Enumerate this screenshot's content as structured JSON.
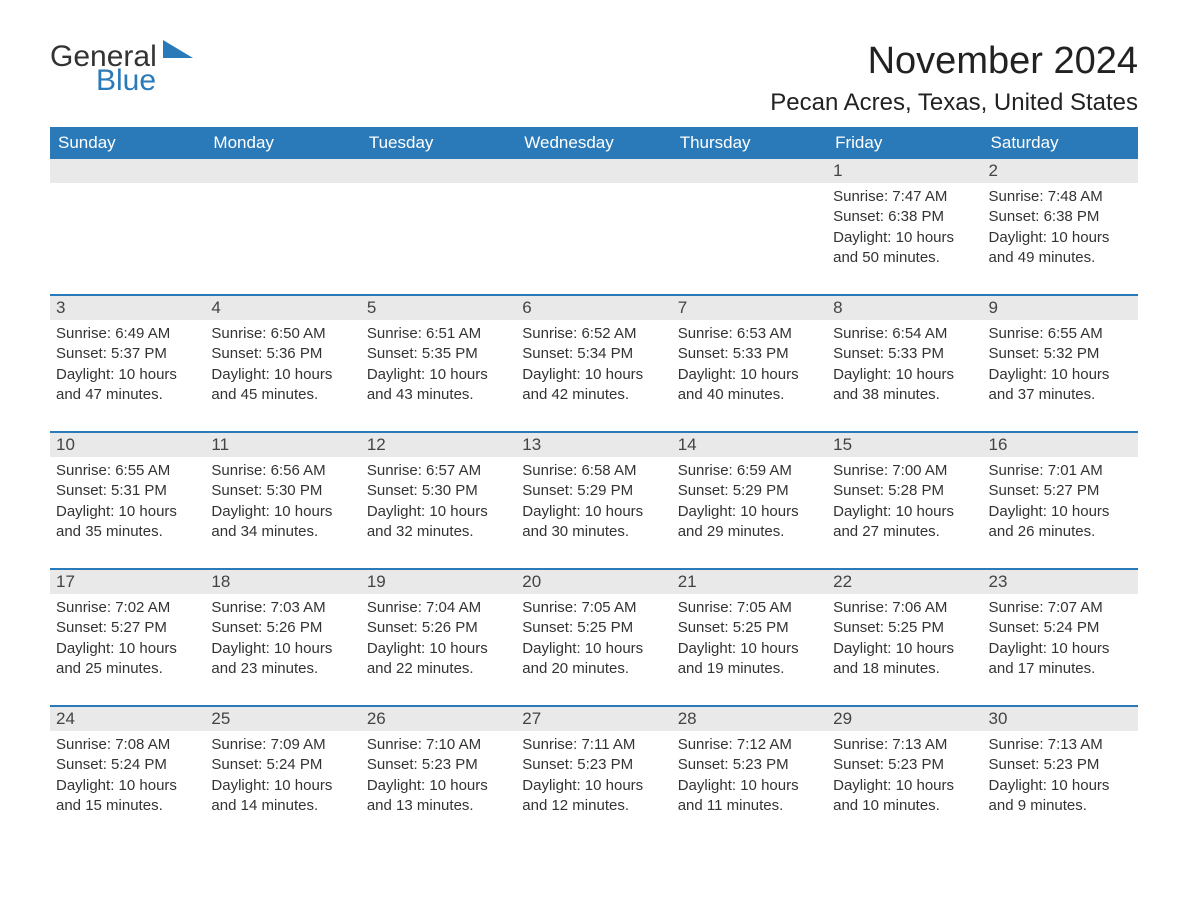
{
  "logo": {
    "part1": "General",
    "part2": "Blue",
    "color_dark": "#333333",
    "color_blue": "#2a7ab9"
  },
  "title": "November 2024",
  "location": "Pecan Acres, Texas, United States",
  "header_bg": "#2a7ab9",
  "header_text_color": "#ffffff",
  "daynum_bg": "#e9e9e9",
  "border_color": "#2a7ab9",
  "days_of_week": [
    "Sunday",
    "Monday",
    "Tuesday",
    "Wednesday",
    "Thursday",
    "Friday",
    "Saturday"
  ],
  "weeks": [
    [
      null,
      null,
      null,
      null,
      null,
      {
        "n": "1",
        "sunrise": "Sunrise: 7:47 AM",
        "sunset": "Sunset: 6:38 PM",
        "dl1": "Daylight: 10 hours",
        "dl2": "and 50 minutes."
      },
      {
        "n": "2",
        "sunrise": "Sunrise: 7:48 AM",
        "sunset": "Sunset: 6:38 PM",
        "dl1": "Daylight: 10 hours",
        "dl2": "and 49 minutes."
      }
    ],
    [
      {
        "n": "3",
        "sunrise": "Sunrise: 6:49 AM",
        "sunset": "Sunset: 5:37 PM",
        "dl1": "Daylight: 10 hours",
        "dl2": "and 47 minutes."
      },
      {
        "n": "4",
        "sunrise": "Sunrise: 6:50 AM",
        "sunset": "Sunset: 5:36 PM",
        "dl1": "Daylight: 10 hours",
        "dl2": "and 45 minutes."
      },
      {
        "n": "5",
        "sunrise": "Sunrise: 6:51 AM",
        "sunset": "Sunset: 5:35 PM",
        "dl1": "Daylight: 10 hours",
        "dl2": "and 43 minutes."
      },
      {
        "n": "6",
        "sunrise": "Sunrise: 6:52 AM",
        "sunset": "Sunset: 5:34 PM",
        "dl1": "Daylight: 10 hours",
        "dl2": "and 42 minutes."
      },
      {
        "n": "7",
        "sunrise": "Sunrise: 6:53 AM",
        "sunset": "Sunset: 5:33 PM",
        "dl1": "Daylight: 10 hours",
        "dl2": "and 40 minutes."
      },
      {
        "n": "8",
        "sunrise": "Sunrise: 6:54 AM",
        "sunset": "Sunset: 5:33 PM",
        "dl1": "Daylight: 10 hours",
        "dl2": "and 38 minutes."
      },
      {
        "n": "9",
        "sunrise": "Sunrise: 6:55 AM",
        "sunset": "Sunset: 5:32 PM",
        "dl1": "Daylight: 10 hours",
        "dl2": "and 37 minutes."
      }
    ],
    [
      {
        "n": "10",
        "sunrise": "Sunrise: 6:55 AM",
        "sunset": "Sunset: 5:31 PM",
        "dl1": "Daylight: 10 hours",
        "dl2": "and 35 minutes."
      },
      {
        "n": "11",
        "sunrise": "Sunrise: 6:56 AM",
        "sunset": "Sunset: 5:30 PM",
        "dl1": "Daylight: 10 hours",
        "dl2": "and 34 minutes."
      },
      {
        "n": "12",
        "sunrise": "Sunrise: 6:57 AM",
        "sunset": "Sunset: 5:30 PM",
        "dl1": "Daylight: 10 hours",
        "dl2": "and 32 minutes."
      },
      {
        "n": "13",
        "sunrise": "Sunrise: 6:58 AM",
        "sunset": "Sunset: 5:29 PM",
        "dl1": "Daylight: 10 hours",
        "dl2": "and 30 minutes."
      },
      {
        "n": "14",
        "sunrise": "Sunrise: 6:59 AM",
        "sunset": "Sunset: 5:29 PM",
        "dl1": "Daylight: 10 hours",
        "dl2": "and 29 minutes."
      },
      {
        "n": "15",
        "sunrise": "Sunrise: 7:00 AM",
        "sunset": "Sunset: 5:28 PM",
        "dl1": "Daylight: 10 hours",
        "dl2": "and 27 minutes."
      },
      {
        "n": "16",
        "sunrise": "Sunrise: 7:01 AM",
        "sunset": "Sunset: 5:27 PM",
        "dl1": "Daylight: 10 hours",
        "dl2": "and 26 minutes."
      }
    ],
    [
      {
        "n": "17",
        "sunrise": "Sunrise: 7:02 AM",
        "sunset": "Sunset: 5:27 PM",
        "dl1": "Daylight: 10 hours",
        "dl2": "and 25 minutes."
      },
      {
        "n": "18",
        "sunrise": "Sunrise: 7:03 AM",
        "sunset": "Sunset: 5:26 PM",
        "dl1": "Daylight: 10 hours",
        "dl2": "and 23 minutes."
      },
      {
        "n": "19",
        "sunrise": "Sunrise: 7:04 AM",
        "sunset": "Sunset: 5:26 PM",
        "dl1": "Daylight: 10 hours",
        "dl2": "and 22 minutes."
      },
      {
        "n": "20",
        "sunrise": "Sunrise: 7:05 AM",
        "sunset": "Sunset: 5:25 PM",
        "dl1": "Daylight: 10 hours",
        "dl2": "and 20 minutes."
      },
      {
        "n": "21",
        "sunrise": "Sunrise: 7:05 AM",
        "sunset": "Sunset: 5:25 PM",
        "dl1": "Daylight: 10 hours",
        "dl2": "and 19 minutes."
      },
      {
        "n": "22",
        "sunrise": "Sunrise: 7:06 AM",
        "sunset": "Sunset: 5:25 PM",
        "dl1": "Daylight: 10 hours",
        "dl2": "and 18 minutes."
      },
      {
        "n": "23",
        "sunrise": "Sunrise: 7:07 AM",
        "sunset": "Sunset: 5:24 PM",
        "dl1": "Daylight: 10 hours",
        "dl2": "and 17 minutes."
      }
    ],
    [
      {
        "n": "24",
        "sunrise": "Sunrise: 7:08 AM",
        "sunset": "Sunset: 5:24 PM",
        "dl1": "Daylight: 10 hours",
        "dl2": "and 15 minutes."
      },
      {
        "n": "25",
        "sunrise": "Sunrise: 7:09 AM",
        "sunset": "Sunset: 5:24 PM",
        "dl1": "Daylight: 10 hours",
        "dl2": "and 14 minutes."
      },
      {
        "n": "26",
        "sunrise": "Sunrise: 7:10 AM",
        "sunset": "Sunset: 5:23 PM",
        "dl1": "Daylight: 10 hours",
        "dl2": "and 13 minutes."
      },
      {
        "n": "27",
        "sunrise": "Sunrise: 7:11 AM",
        "sunset": "Sunset: 5:23 PM",
        "dl1": "Daylight: 10 hours",
        "dl2": "and 12 minutes."
      },
      {
        "n": "28",
        "sunrise": "Sunrise: 7:12 AM",
        "sunset": "Sunset: 5:23 PM",
        "dl1": "Daylight: 10 hours",
        "dl2": "and 11 minutes."
      },
      {
        "n": "29",
        "sunrise": "Sunrise: 7:13 AM",
        "sunset": "Sunset: 5:23 PM",
        "dl1": "Daylight: 10 hours",
        "dl2": "and 10 minutes."
      },
      {
        "n": "30",
        "sunrise": "Sunrise: 7:13 AM",
        "sunset": "Sunset: 5:23 PM",
        "dl1": "Daylight: 10 hours",
        "dl2": "and 9 minutes."
      }
    ]
  ]
}
